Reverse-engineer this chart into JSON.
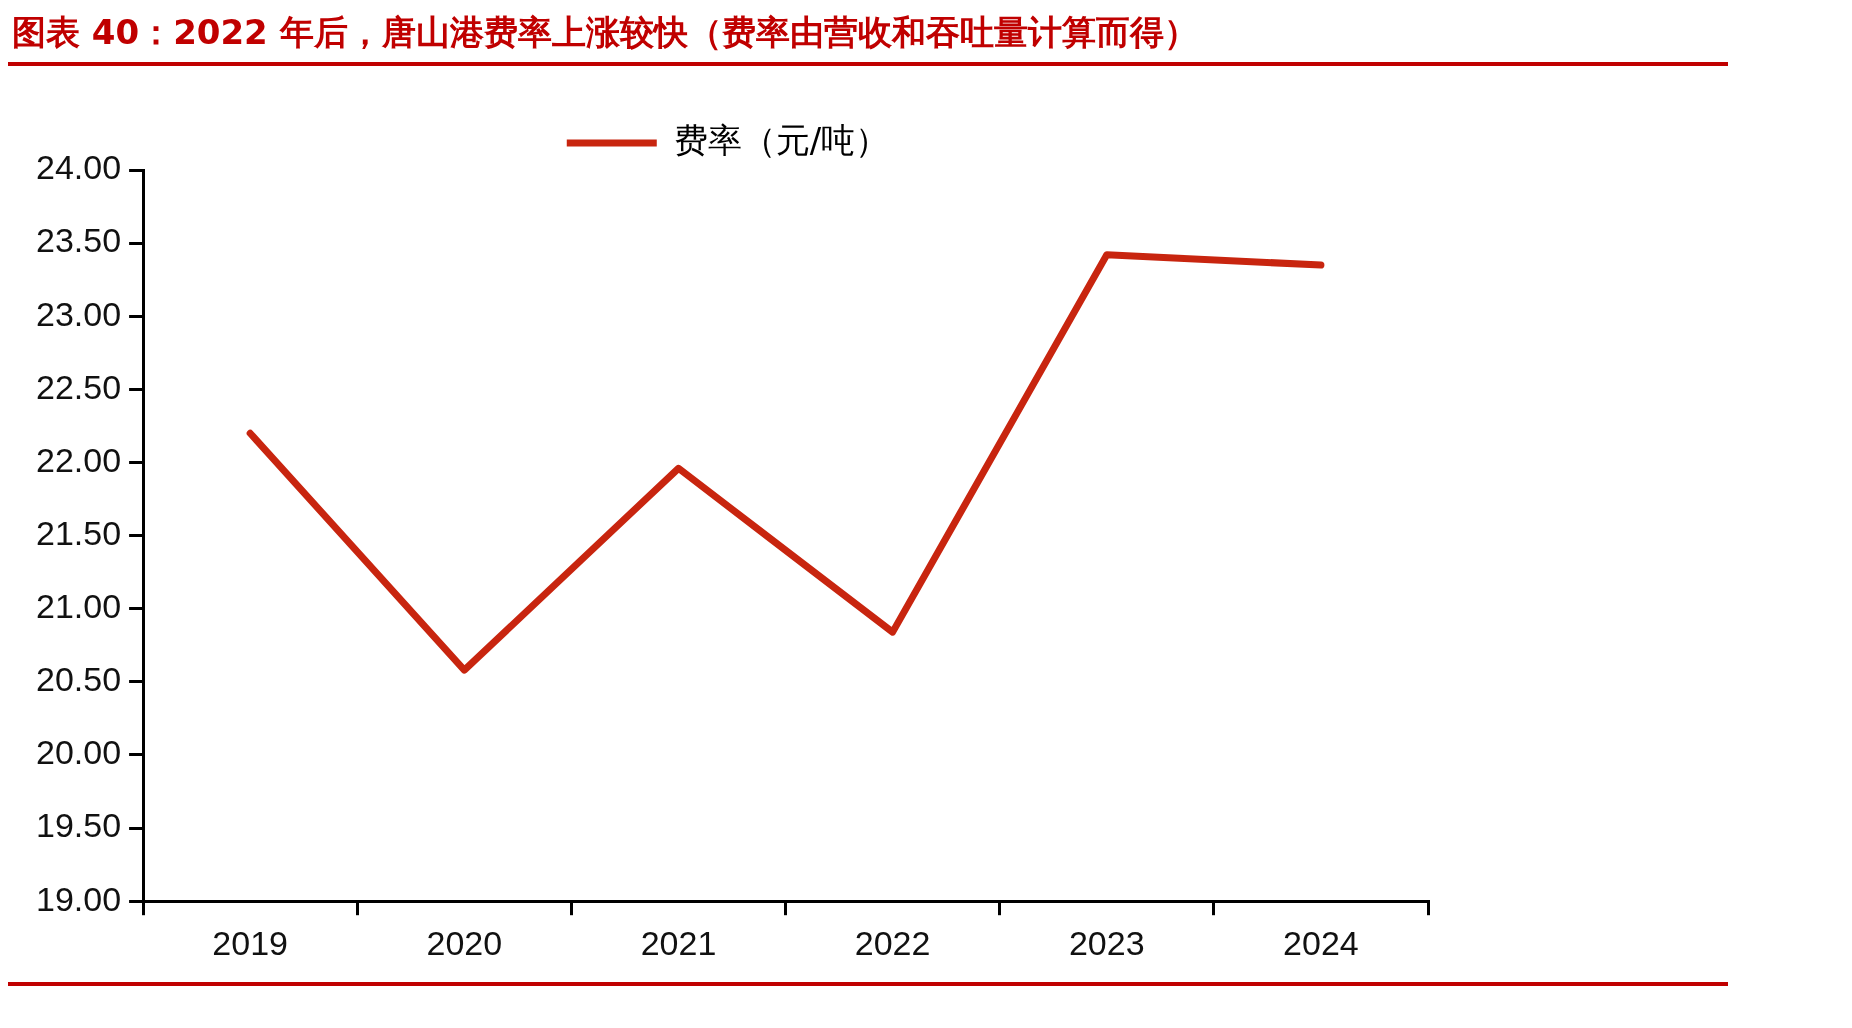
{
  "chart_data": {
    "type": "line",
    "title": "图表 40：2022 年后，唐山港费率上涨较快（费率由营收和吞吐量计算而得）",
    "categories": [
      "2019",
      "2020",
      "2021",
      "2022",
      "2023",
      "2024"
    ],
    "series": [
      {
        "name": "费率（元/吨）",
        "color": "#c8250f",
        "values": [
          22.2,
          20.58,
          21.96,
          20.84,
          23.42,
          23.35
        ]
      }
    ],
    "ylim": [
      19,
      24
    ],
    "yticks": [
      {
        "value": 19,
        "label": "19.00"
      },
      {
        "value": 19.5,
        "label": "19.50"
      },
      {
        "value": 20,
        "label": "20.00"
      },
      {
        "value": 20.5,
        "label": "20.50"
      },
      {
        "value": 21,
        "label": "21.00"
      },
      {
        "value": 21.5,
        "label": "21.50"
      },
      {
        "value": 22,
        "label": "22.00"
      },
      {
        "value": 22.5,
        "label": "22.50"
      },
      {
        "value": 23,
        "label": "23.00"
      },
      {
        "value": 23.5,
        "label": "23.50"
      },
      {
        "value": 24,
        "label": "24.00"
      }
    ],
    "grid": false,
    "legend": "top",
    "marker": "none",
    "line_style": "solid"
  }
}
